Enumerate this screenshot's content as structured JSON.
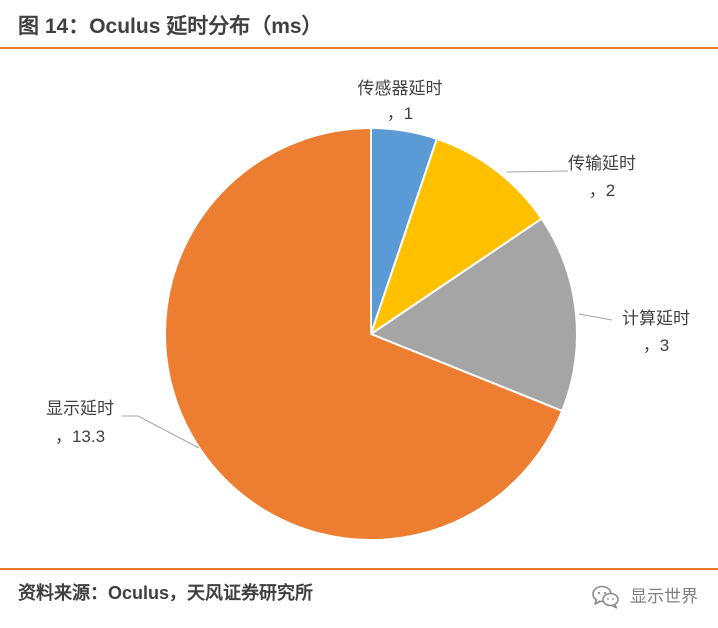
{
  "colors": {
    "rule": "#E97A2E",
    "text": "#404040",
    "leader_line": "#A6A6A6",
    "slice_border": "#FFFFFF"
  },
  "chart_data": {
    "type": "pie",
    "title": "图 14：Oculus 延时分布（ms）",
    "categories": [
      "传感器延时",
      "传输延时",
      "计算延时",
      "显示延时"
    ],
    "values": [
      1,
      2,
      3,
      13.3
    ],
    "colors": [
      "#5B9BD5",
      "#FFC000",
      "#A5A5A5",
      "#ED7D31"
    ],
    "label_separator": "，",
    "legend": "none"
  },
  "footer": {
    "source": "资料来源：Oculus，天风证券研究所",
    "wechat_icon": "wechat-icon",
    "wechat_account": "显示世界"
  }
}
